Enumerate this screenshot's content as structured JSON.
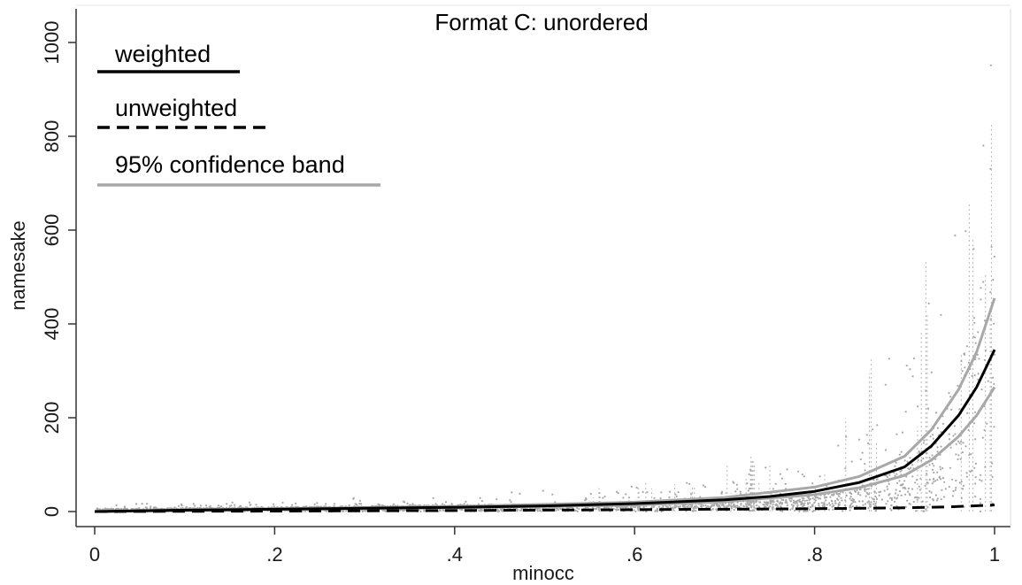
{
  "chart_data": {
    "type": "scatter",
    "title": "Format C: unordered",
    "xlabel": "minocc",
    "ylabel": "namesake",
    "xlim": [
      0,
      1
    ],
    "ylim": [
      0,
      1000
    ],
    "x_ticks": [
      {
        "value": 0,
        "label": "0"
      },
      {
        "value": 0.2,
        "label": ".2"
      },
      {
        "value": 0.4,
        "label": ".4"
      },
      {
        "value": 0.6,
        "label": ".6"
      },
      {
        "value": 0.8,
        "label": ".8"
      },
      {
        "value": 1,
        "label": "1"
      }
    ],
    "y_ticks": [
      {
        "value": 0,
        "label": "0"
      },
      {
        "value": 200,
        "label": "200"
      },
      {
        "value": 400,
        "label": "400"
      },
      {
        "value": 600,
        "label": "600"
      },
      {
        "value": 800,
        "label": "800"
      },
      {
        "value": 1000,
        "label": "1000"
      }
    ],
    "grid": false,
    "legend_position": "top-left",
    "legend": [
      {
        "label": "weighted",
        "style": "solid",
        "color": "#000000"
      },
      {
        "label": "unweighted",
        "style": "dashed",
        "color": "#000000"
      },
      {
        "label": "95% confidence band",
        "style": "solid",
        "color": "#a8a8a8"
      }
    ],
    "series": [
      {
        "key": "weighted",
        "style": "solid",
        "color": "#000000",
        "points": [
          [
            0,
            0
          ],
          [
            0.1,
            3
          ],
          [
            0.2,
            5
          ],
          [
            0.3,
            7
          ],
          [
            0.4,
            9
          ],
          [
            0.5,
            12
          ],
          [
            0.6,
            17
          ],
          [
            0.7,
            25
          ],
          [
            0.75,
            32
          ],
          [
            0.8,
            43
          ],
          [
            0.85,
            62
          ],
          [
            0.9,
            95
          ],
          [
            0.93,
            140
          ],
          [
            0.96,
            205
          ],
          [
            0.98,
            265
          ],
          [
            1.0,
            345
          ]
        ]
      },
      {
        "key": "unweighted",
        "style": "dashed",
        "color": "#000000",
        "points": [
          [
            0,
            0
          ],
          [
            0.2,
            1
          ],
          [
            0.4,
            2
          ],
          [
            0.6,
            4
          ],
          [
            0.8,
            6
          ],
          [
            0.9,
            8
          ],
          [
            0.95,
            10
          ],
          [
            1.0,
            14
          ]
        ]
      },
      {
        "key": "ci_upper",
        "style": "solid",
        "color": "#a8a8a8",
        "points": [
          [
            0,
            0
          ],
          [
            0.2,
            6
          ],
          [
            0.4,
            11
          ],
          [
            0.6,
            20
          ],
          [
            0.7,
            30
          ],
          [
            0.8,
            52
          ],
          [
            0.85,
            75
          ],
          [
            0.9,
            118
          ],
          [
            0.93,
            175
          ],
          [
            0.96,
            260
          ],
          [
            0.98,
            340
          ],
          [
            1.0,
            455
          ]
        ]
      },
      {
        "key": "ci_lower",
        "style": "solid",
        "color": "#a8a8a8",
        "points": [
          [
            0,
            0
          ],
          [
            0.2,
            4
          ],
          [
            0.4,
            8
          ],
          [
            0.6,
            14
          ],
          [
            0.7,
            21
          ],
          [
            0.8,
            36
          ],
          [
            0.85,
            51
          ],
          [
            0.9,
            77
          ],
          [
            0.93,
            110
          ],
          [
            0.96,
            160
          ],
          [
            0.98,
            205
          ],
          [
            1.0,
            265
          ]
        ]
      }
    ],
    "scatter": {
      "color": "#a8a8a8",
      "description_of_envelope": [
        [
          0,
          15
        ],
        [
          0.2,
          25
        ],
        [
          0.4,
          40
        ],
        [
          0.6,
          65
        ],
        [
          0.7,
          100
        ],
        [
          0.8,
          170
        ],
        [
          0.85,
          300
        ],
        [
          0.9,
          500
        ],
        [
          0.97,
          900
        ],
        [
          1.0,
          1040
        ]
      ]
    }
  }
}
